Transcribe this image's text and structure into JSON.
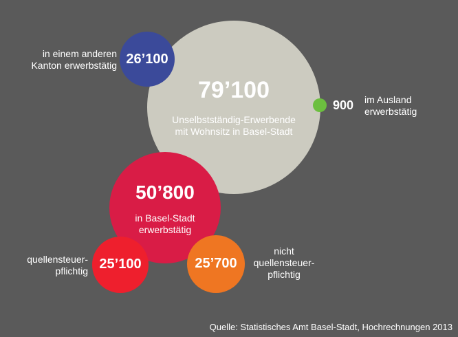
{
  "colors": {
    "background": "#5a5a5a",
    "total": "#cccbc0",
    "other_canton": "#3b4a9a",
    "abroad": "#6cbf3f",
    "basel_stadt": "#d91c46",
    "withholding": "#ee1f2d",
    "not_withholding": "#ef7622"
  },
  "nodes": {
    "total": {
      "value": "79’100",
      "label": [
        "Unselbstständig-Erwerbende",
        "mit Wohnsitz in Basel-Stadt"
      ]
    },
    "other_canton": {
      "value": "26’100",
      "label": [
        "in einem anderen",
        "Kanton erwerbstätig"
      ]
    },
    "abroad": {
      "value": "900",
      "label": [
        "im Ausland",
        "erwerbstätig"
      ]
    },
    "basel_stadt": {
      "value": "50’800",
      "label": [
        "in Basel-Stadt",
        "erwerbstätig"
      ]
    },
    "withholding": {
      "value": "25’100",
      "label": [
        "quellensteuer-",
        "pflichtig"
      ]
    },
    "not_withholding": {
      "value": "25’700",
      "label": [
        "nicht",
        "quellensteuer-",
        "pflichtig"
      ]
    }
  },
  "source": "Quelle: Statistisches Amt Basel-Stadt, Hochrechnungen 2013"
}
